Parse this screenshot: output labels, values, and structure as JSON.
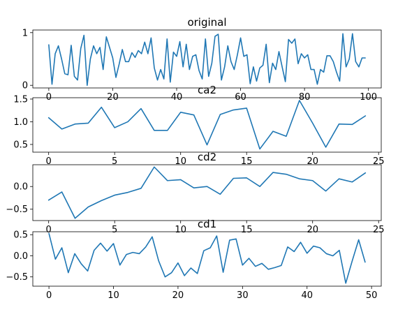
{
  "chart_data": [
    {
      "type": "line",
      "title": "original",
      "xlim": [
        -5,
        104
      ],
      "ylim": [
        -0.05,
        1.05
      ],
      "xticks": [
        0,
        20,
        40,
        60,
        80,
        100
      ],
      "yticks": [
        0,
        1
      ],
      "grid": false,
      "series": [
        {
          "color": "#1f77b4",
          "x": [
            0,
            1,
            2,
            3,
            4,
            5,
            6,
            7,
            8,
            9,
            10,
            11,
            12,
            13,
            14,
            15,
            16,
            17,
            18,
            19,
            20,
            21,
            22,
            23,
            24,
            25,
            26,
            27,
            28,
            29,
            30,
            31,
            32,
            33,
            34,
            35,
            36,
            37,
            38,
            39,
            40,
            41,
            42,
            43,
            44,
            45,
            46,
            47,
            48,
            49,
            50,
            51,
            52,
            53,
            54,
            55,
            56,
            57,
            58,
            59,
            60,
            61,
            62,
            63,
            64,
            65,
            66,
            67,
            68,
            69,
            70,
            71,
            72,
            73,
            74,
            75,
            76,
            77,
            78,
            79,
            80,
            81,
            82,
            83,
            84,
            85,
            86,
            87,
            88,
            89,
            90,
            91,
            92,
            93,
            94,
            95,
            96,
            97,
            98,
            99
          ],
          "y": [
            0.77,
            0.02,
            0.6,
            0.75,
            0.5,
            0.22,
            0.2,
            0.76,
            0.17,
            0.1,
            0.7,
            0.95,
            0.0,
            0.5,
            0.75,
            0.6,
            0.72,
            0.3,
            0.92,
            0.72,
            0.52,
            0.15,
            0.4,
            0.68,
            0.45,
            0.45,
            0.62,
            0.53,
            0.66,
            0.6,
            0.82,
            0.6,
            0.9,
            0.33,
            0.1,
            0.3,
            0.12,
            0.88,
            0.06,
            0.63,
            0.55,
            0.83,
            0.35,
            0.78,
            0.3,
            0.55,
            0.58,
            0.28,
            0.12,
            0.88,
            0.17,
            0.42,
            0.93,
            0.97,
            0.1,
            0.35,
            0.75,
            0.45,
            0.3,
            0.58,
            0.9,
            0.55,
            0.58,
            0.03,
            0.35,
            0.08,
            0.33,
            0.38,
            0.78,
            0.05,
            0.42,
            0.3,
            0.64,
            0.35,
            0.07,
            0.87,
            0.8,
            0.88,
            0.41,
            0.6,
            0.52,
            0.58,
            0.3,
            0.3,
            0.02,
            0.3,
            0.25,
            0.56,
            0.56,
            0.45,
            0.25,
            0.08,
            0.98,
            0.35,
            0.5,
            0.98,
            0.45,
            0.35,
            0.52,
            0.52
          ]
        }
      ]
    },
    {
      "type": "line",
      "title": "ca2",
      "xlim": [
        -1.2,
        25.2
      ],
      "ylim": [
        0.33,
        1.53
      ],
      "xticks": [
        0,
        5,
        10,
        15,
        20,
        25
      ],
      "yticks": [
        0.5,
        1.0,
        1.5
      ],
      "ytick_labels": [
        "0.5",
        "1.0",
        "1.5"
      ],
      "grid": false,
      "series": [
        {
          "color": "#1f77b4",
          "x": [
            0,
            1,
            2,
            3,
            4,
            5,
            6,
            7,
            8,
            9,
            10,
            11,
            12,
            13,
            14,
            15,
            16,
            17,
            18,
            19,
            20,
            21,
            22,
            23,
            24
          ],
          "y": [
            1.09,
            0.84,
            0.95,
            0.97,
            1.32,
            0.87,
            1.0,
            1.29,
            0.81,
            0.81,
            1.21,
            1.15,
            0.49,
            1.16,
            1.26,
            1.3,
            0.4,
            0.79,
            0.68,
            1.47,
            0.97,
            0.44,
            0.95,
            0.94,
            1.13
          ]
        }
      ]
    },
    {
      "type": "line",
      "title": "cd2",
      "xlim": [
        -1.2,
        25.2
      ],
      "ylim": [
        -0.75,
        0.48
      ],
      "xticks": [
        0,
        5,
        10,
        15,
        20,
        25
      ],
      "yticks": [
        -0.5,
        0.0
      ],
      "ytick_labels": [
        "−0.5",
        "0.0"
      ],
      "grid": false,
      "series": [
        {
          "color": "#1f77b4",
          "x": [
            0,
            1,
            2,
            3,
            4,
            5,
            6,
            7,
            8,
            9,
            10,
            11,
            12,
            13,
            14,
            15,
            16,
            17,
            18,
            19,
            20,
            21,
            22,
            23,
            24
          ],
          "y": [
            -0.3,
            -0.12,
            -0.7,
            -0.45,
            -0.31,
            -0.19,
            -0.13,
            -0.04,
            0.43,
            0.13,
            0.15,
            -0.03,
            0.0,
            -0.17,
            0.18,
            0.19,
            0.0,
            0.31,
            0.27,
            0.17,
            0.13,
            -0.1,
            0.17,
            0.1,
            0.3
          ]
        }
      ]
    },
    {
      "type": "line",
      "title": "cd1",
      "xlim": [
        -2.5,
        51.5
      ],
      "ylim": [
        -0.72,
        0.57
      ],
      "xticks": [
        0,
        10,
        20,
        30,
        40,
        50
      ],
      "yticks": [
        -0.5,
        0.0,
        0.5
      ],
      "ytick_labels": [
        "−0.5",
        "0.0",
        "0.5"
      ],
      "grid": false,
      "series": [
        {
          "color": "#1f77b4",
          "x": [
            0,
            1,
            2,
            3,
            4,
            5,
            6,
            7,
            8,
            9,
            10,
            11,
            12,
            13,
            14,
            15,
            16,
            17,
            18,
            19,
            20,
            21,
            22,
            23,
            24,
            25,
            26,
            27,
            28,
            29,
            30,
            31,
            32,
            33,
            34,
            35,
            36,
            37,
            38,
            39,
            40,
            41,
            42,
            43,
            44,
            45,
            46,
            47,
            48,
            49
          ],
          "y": [
            0.53,
            -0.08,
            0.19,
            -0.4,
            0.05,
            -0.19,
            -0.36,
            0.13,
            0.3,
            0.11,
            0.29,
            -0.22,
            0.03,
            0.08,
            0.05,
            0.21,
            0.45,
            -0.12,
            -0.5,
            -0.4,
            -0.17,
            -0.47,
            -0.29,
            -0.42,
            0.12,
            0.19,
            0.47,
            -0.39,
            0.37,
            0.4,
            -0.22,
            -0.06,
            -0.25,
            -0.18,
            -0.32,
            -0.28,
            -0.23,
            0.21,
            0.1,
            0.32,
            0.06,
            0.23,
            0.19,
            0.05,
            0.0,
            0.13,
            -0.65,
            -0.12,
            0.38,
            -0.15
          ]
        }
      ]
    }
  ]
}
